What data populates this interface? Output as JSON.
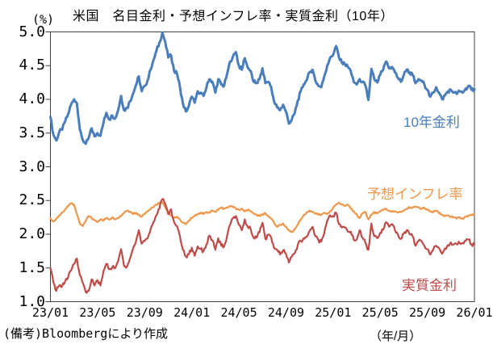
{
  "chart_data": {
    "type": "line",
    "title": "米国　名目金利・予想インフレ率・実質金利（10年）",
    "y_axis_unit": "(%)",
    "x_axis_unit": "（年/月）",
    "source_note": "(備考)Bloombergにより作成",
    "ylim": [
      1.0,
      5.0
    ],
    "y_tick_labels": [
      "5.0",
      "4.5",
      "4.0",
      "3.5",
      "3.0",
      "2.5",
      "2.0",
      "1.5",
      "1.0"
    ],
    "x_tick_labels": [
      "23/01",
      "23/05",
      "23/09",
      "24/01",
      "24/05",
      "24/09",
      "25/01",
      "25/05",
      "25/09",
      "26/01"
    ],
    "x_range": "2023/01 - 2026/01, values estimated at weekly resolution",
    "grid": false,
    "legend_position": "inline-labels-right",
    "axis_color": "#404040",
    "series": [
      {
        "name": "10年金利",
        "color": "#4a7eba",
        "line_width": 3,
        "daily_noise": 0.028,
        "values": [
          3.74,
          3.48,
          3.39,
          3.52,
          3.55,
          3.67,
          3.78,
          3.92,
          4.0,
          3.94,
          3.55,
          3.4,
          3.34,
          3.43,
          3.57,
          3.45,
          3.5,
          3.46,
          3.65,
          3.8,
          3.7,
          3.76,
          3.72,
          3.84,
          4.05,
          3.84,
          3.87,
          3.97,
          4.08,
          4.2,
          4.34,
          4.12,
          4.2,
          4.28,
          4.44,
          4.58,
          4.72,
          4.84,
          4.99,
          4.85,
          4.62,
          4.65,
          4.42,
          4.38,
          4.18,
          3.94,
          3.82,
          3.9,
          4.04,
          3.95,
          4.12,
          4.1,
          4.05,
          4.18,
          4.3,
          4.26,
          4.1,
          4.3,
          4.22,
          4.2,
          4.38,
          4.56,
          4.64,
          4.7,
          4.5,
          4.44,
          4.61,
          4.47,
          4.42,
          4.26,
          4.24,
          4.3,
          4.46,
          4.24,
          4.26,
          4.18,
          3.96,
          3.88,
          3.84,
          3.92,
          3.82,
          3.64,
          3.7,
          3.8,
          3.98,
          4.12,
          4.22,
          4.28,
          4.4,
          4.44,
          4.28,
          4.2,
          4.18,
          4.34,
          4.5,
          4.62,
          4.66,
          4.79,
          4.62,
          4.54,
          4.52,
          4.48,
          4.42,
          4.26,
          4.22,
          4.3,
          4.26,
          4.2,
          3.99,
          4.45,
          4.3,
          4.25,
          4.36,
          4.44,
          4.56,
          4.46,
          4.48,
          4.4,
          4.32,
          4.26,
          4.36,
          4.44,
          4.4,
          4.36,
          4.24,
          4.3,
          4.28,
          4.22,
          4.14,
          4.04,
          4.1,
          4.18,
          4.1,
          4.0,
          4.06,
          4.12,
          4.14,
          4.1,
          4.08,
          4.12,
          4.1,
          4.16,
          4.2,
          4.14,
          4.15
        ]
      },
      {
        "name": "予想インフレ率",
        "color": "#f09649",
        "line_width": 2.2,
        "daily_noise": 0.013,
        "values": [
          2.24,
          2.19,
          2.23,
          2.28,
          2.32,
          2.37,
          2.42,
          2.46,
          2.44,
          2.3,
          2.16,
          2.12,
          2.2,
          2.27,
          2.24,
          2.21,
          2.18,
          2.22,
          2.2,
          2.24,
          2.22,
          2.25,
          2.22,
          2.24,
          2.27,
          2.31,
          2.35,
          2.33,
          2.3,
          2.32,
          2.28,
          2.26,
          2.3,
          2.34,
          2.37,
          2.4,
          2.44,
          2.46,
          2.47,
          2.4,
          2.32,
          2.28,
          2.24,
          2.26,
          2.22,
          2.17,
          2.15,
          2.2,
          2.24,
          2.27,
          2.3,
          2.32,
          2.3,
          2.33,
          2.32,
          2.35,
          2.33,
          2.36,
          2.39,
          2.38,
          2.4,
          2.42,
          2.4,
          2.38,
          2.36,
          2.38,
          2.34,
          2.36,
          2.34,
          2.31,
          2.29,
          2.27,
          2.29,
          2.31,
          2.27,
          2.23,
          2.17,
          2.11,
          2.14,
          2.16,
          2.11,
          2.06,
          2.03,
          2.08,
          2.14,
          2.22,
          2.28,
          2.32,
          2.35,
          2.33,
          2.31,
          2.29,
          2.29,
          2.32,
          2.3,
          2.34,
          2.39,
          2.44,
          2.47,
          2.44,
          2.42,
          2.44,
          2.38,
          2.34,
          2.3,
          2.24,
          2.31,
          2.33,
          2.22,
          2.29,
          2.33,
          2.31,
          2.34,
          2.37,
          2.38,
          2.35,
          2.33,
          2.34,
          2.32,
          2.33,
          2.35,
          2.38,
          2.4,
          2.39,
          2.41,
          2.4,
          2.38,
          2.39,
          2.36,
          2.34,
          2.33,
          2.35,
          2.31,
          2.29,
          2.27,
          2.28,
          2.26,
          2.25,
          2.23,
          2.25,
          2.23,
          2.26,
          2.28,
          2.29,
          2.3
        ]
      },
      {
        "name": "実質金利",
        "color": "#be4b48",
        "line_width": 2.2,
        "daily_noise": 0.028,
        "values": [
          1.5,
          1.29,
          1.16,
          1.24,
          1.23,
          1.3,
          1.36,
          1.46,
          1.56,
          1.64,
          1.39,
          1.28,
          1.14,
          1.16,
          1.33,
          1.24,
          1.32,
          1.24,
          1.45,
          1.56,
          1.48,
          1.51,
          1.5,
          1.6,
          1.78,
          1.53,
          1.52,
          1.64,
          1.78,
          1.88,
          2.06,
          1.86,
          1.9,
          1.94,
          2.07,
          2.18,
          2.28,
          2.38,
          2.52,
          2.45,
          2.3,
          2.37,
          2.18,
          2.12,
          1.96,
          1.77,
          1.67,
          1.7,
          1.8,
          1.68,
          1.82,
          1.78,
          1.75,
          1.85,
          1.98,
          1.91,
          1.77,
          1.94,
          1.83,
          1.82,
          1.98,
          2.14,
          2.24,
          2.27,
          2.14,
          2.06,
          2.22,
          2.11,
          2.08,
          1.95,
          1.95,
          2.03,
          2.17,
          1.93,
          1.99,
          1.95,
          1.79,
          1.77,
          1.7,
          1.76,
          1.71,
          1.58,
          1.67,
          1.72,
          1.84,
          1.9,
          1.94,
          1.96,
          2.05,
          2.11,
          1.97,
          1.91,
          1.89,
          2.02,
          2.2,
          2.28,
          2.27,
          2.32,
          2.15,
          2.1,
          2.1,
          2.04,
          2.04,
          1.92,
          1.92,
          2.06,
          1.95,
          1.87,
          1.77,
          2.16,
          1.97,
          1.94,
          2.02,
          2.07,
          2.18,
          2.11,
          2.15,
          2.06,
          2.0,
          1.93,
          2.01,
          2.06,
          2.0,
          1.97,
          1.83,
          1.9,
          1.9,
          1.83,
          1.78,
          1.7,
          1.77,
          1.83,
          1.79,
          1.71,
          1.79,
          1.84,
          1.88,
          1.85,
          1.85,
          1.87,
          1.87,
          1.9,
          1.92,
          1.85,
          1.85
        ]
      }
    ]
  }
}
